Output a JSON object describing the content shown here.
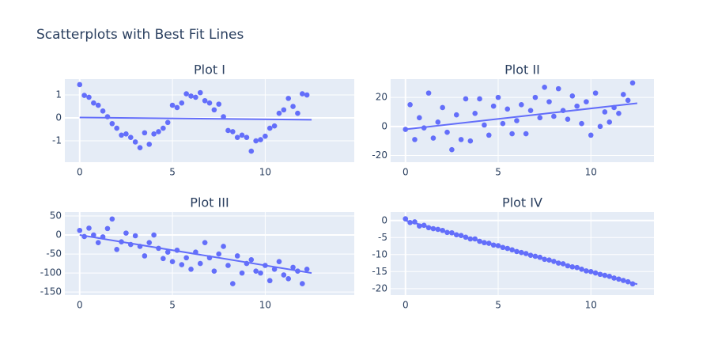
{
  "title": "Scatterplots with Best Fit Lines",
  "chart_data": [
    {
      "type": "scatter",
      "title": "Plot I",
      "color": "#636efa",
      "grid": true,
      "x": [
        0,
        0.25,
        0.5,
        0.75,
        1,
        1.25,
        1.5,
        1.75,
        2,
        2.25,
        2.5,
        2.75,
        3,
        3.25,
        3.5,
        3.75,
        4,
        4.25,
        4.5,
        4.75,
        5,
        5.25,
        5.5,
        5.75,
        6,
        6.25,
        6.5,
        6.75,
        7,
        7.25,
        7.5,
        7.75,
        8,
        8.25,
        8.5,
        8.75,
        9,
        9.25,
        9.5,
        9.75,
        10,
        10.25,
        10.5,
        10.75,
        11,
        11.25,
        11.5,
        11.75,
        12,
        12.25
      ],
      "values": [
        1.45,
        0.98,
        0.9,
        0.65,
        0.55,
        0.3,
        0.05,
        -0.25,
        -0.45,
        -0.75,
        -0.7,
        -0.85,
        -1.05,
        -1.3,
        -0.65,
        -1.15,
        -0.7,
        -0.6,
        -0.45,
        -0.2,
        0.55,
        0.45,
        0.65,
        1.05,
        0.95,
        0.9,
        1.1,
        0.75,
        0.65,
        0.35,
        0.6,
        0.05,
        -0.55,
        -0.6,
        -0.85,
        -0.75,
        -0.85,
        -1.45,
        -1.0,
        -0.95,
        -0.8,
        -0.45,
        -0.35,
        0.2,
        0.35,
        0.85,
        0.5,
        0.2,
        1.05,
        1.0
      ],
      "fit": {
        "x": [
          0,
          12.5
        ],
        "values": [
          0.02,
          -0.08
        ]
      },
      "xlim": [
        -0.8,
        14.8
      ],
      "ylim": [
        -1.93,
        1.69
      ],
      "xticks": [
        0,
        5,
        10
      ],
      "yticks": [
        -1,
        0,
        1
      ]
    },
    {
      "type": "scatter",
      "title": "Plot II",
      "color": "#636efa",
      "grid": true,
      "x": [
        0,
        0.25,
        0.5,
        0.75,
        1,
        1.25,
        1.5,
        1.75,
        2,
        2.25,
        2.5,
        2.75,
        3,
        3.25,
        3.5,
        3.75,
        4,
        4.25,
        4.5,
        4.75,
        5,
        5.25,
        5.5,
        5.75,
        6,
        6.25,
        6.5,
        6.75,
        7,
        7.25,
        7.5,
        7.75,
        8,
        8.25,
        8.5,
        8.75,
        9,
        9.25,
        9.5,
        9.75,
        10,
        10.25,
        10.5,
        10.75,
        11,
        11.25,
        11.5,
        11.75,
        12,
        12.25
      ],
      "values": [
        -2,
        15,
        -9,
        6,
        -1,
        23,
        -8,
        3,
        13,
        -4,
        -16,
        8,
        -9,
        19,
        -10,
        9,
        19,
        1,
        -6,
        14,
        20,
        2,
        12,
        -5,
        4,
        15,
        -5,
        11,
        20,
        6,
        27,
        17,
        7,
        26,
        11,
        5,
        21,
        14,
        2,
        17,
        -6,
        23,
        0,
        10,
        3,
        13,
        9,
        22,
        18,
        30
      ],
      "fit": {
        "x": [
          0,
          12.5
        ],
        "values": [
          -2,
          16
        ]
      },
      "xlim": [
        -0.8,
        13.4
      ],
      "ylim": [
        -24.6,
        32.6
      ],
      "xticks": [
        0,
        5,
        10
      ],
      "yticks": [
        -20,
        0,
        20
      ]
    },
    {
      "type": "scatter",
      "title": "Plot III",
      "color": "#636efa",
      "grid": true,
      "x": [
        0,
        0.25,
        0.5,
        0.75,
        1,
        1.25,
        1.5,
        1.75,
        2,
        2.25,
        2.5,
        2.75,
        3,
        3.25,
        3.5,
        3.75,
        4,
        4.25,
        4.5,
        4.75,
        5,
        5.25,
        5.5,
        5.75,
        6,
        6.25,
        6.5,
        6.75,
        7,
        7.25,
        7.5,
        7.75,
        8,
        8.25,
        8.5,
        8.75,
        9,
        9.25,
        9.5,
        9.75,
        10,
        10.25,
        10.5,
        10.75,
        11,
        11.25,
        11.5,
        11.75,
        12,
        12.25
      ],
      "values": [
        12,
        -4,
        18,
        0,
        -20,
        -5,
        17,
        42,
        -38,
        -18,
        5,
        -25,
        -2,
        -30,
        -55,
        -20,
        0,
        -35,
        -62,
        -45,
        -70,
        -40,
        -78,
        -60,
        -90,
        -45,
        -75,
        -20,
        -60,
        -95,
        -50,
        -30,
        -80,
        -128,
        -55,
        -100,
        -75,
        -65,
        -95,
        -100,
        -80,
        -120,
        -90,
        -70,
        -105,
        -115,
        -85,
        -95,
        -128,
        -90
      ],
      "fit": {
        "x": [
          0,
          12.5
        ],
        "values": [
          0,
          -100
        ]
      },
      "xlim": [
        -0.8,
        14.8
      ],
      "ylim": [
        -158,
        60.4
      ],
      "xticks": [
        0,
        5,
        10
      ],
      "yticks": [
        -150,
        -100,
        -50,
        0,
        50
      ]
    },
    {
      "type": "scatter",
      "title": "Plot IV",
      "color": "#636efa",
      "grid": true,
      "x": [
        0,
        0.25,
        0.5,
        0.75,
        1,
        1.25,
        1.5,
        1.75,
        2,
        2.25,
        2.5,
        2.75,
        3,
        3.25,
        3.5,
        3.75,
        4,
        4.25,
        4.5,
        4.75,
        5,
        5.25,
        5.5,
        5.75,
        6,
        6.25,
        6.5,
        6.75,
        7,
        7.25,
        7.5,
        7.75,
        8,
        8.25,
        8.5,
        8.75,
        9,
        9.25,
        9.5,
        9.75,
        10,
        10.25,
        10.5,
        10.75,
        11,
        11.25,
        11.5,
        11.75,
        12,
        12.25
      ],
      "values": [
        0.5,
        -0.6,
        -0.4,
        -1.6,
        -1.4,
        -2.1,
        -2.4,
        -2.6,
        -2.9,
        -3.5,
        -3.6,
        -4.2,
        -4.4,
        -4.9,
        -5.4,
        -5.4,
        -6.1,
        -6.5,
        -6.7,
        -7.2,
        -7.4,
        -7.9,
        -8.2,
        -8.6,
        -9.1,
        -9.4,
        -9.7,
        -10.2,
        -10.5,
        -10.8,
        -11.4,
        -11.6,
        -12.0,
        -12.5,
        -12.7,
        -13.3,
        -13.6,
        -13.8,
        -14.3,
        -14.8,
        -15.0,
        -15.4,
        -15.8,
        -16.1,
        -16.4,
        -16.9,
        -17.2,
        -17.6,
        -18.0,
        -18.6
      ],
      "fit": {
        "x": [
          0,
          12.5
        ],
        "values": [
          0,
          -18.7
        ]
      },
      "xlim": [
        -0.8,
        13.4
      ],
      "ylim": [
        -21.9,
        2.5
      ],
      "xticks": [
        0,
        5,
        10
      ],
      "yticks": [
        -20,
        -15,
        -10,
        -5,
        0
      ]
    }
  ]
}
